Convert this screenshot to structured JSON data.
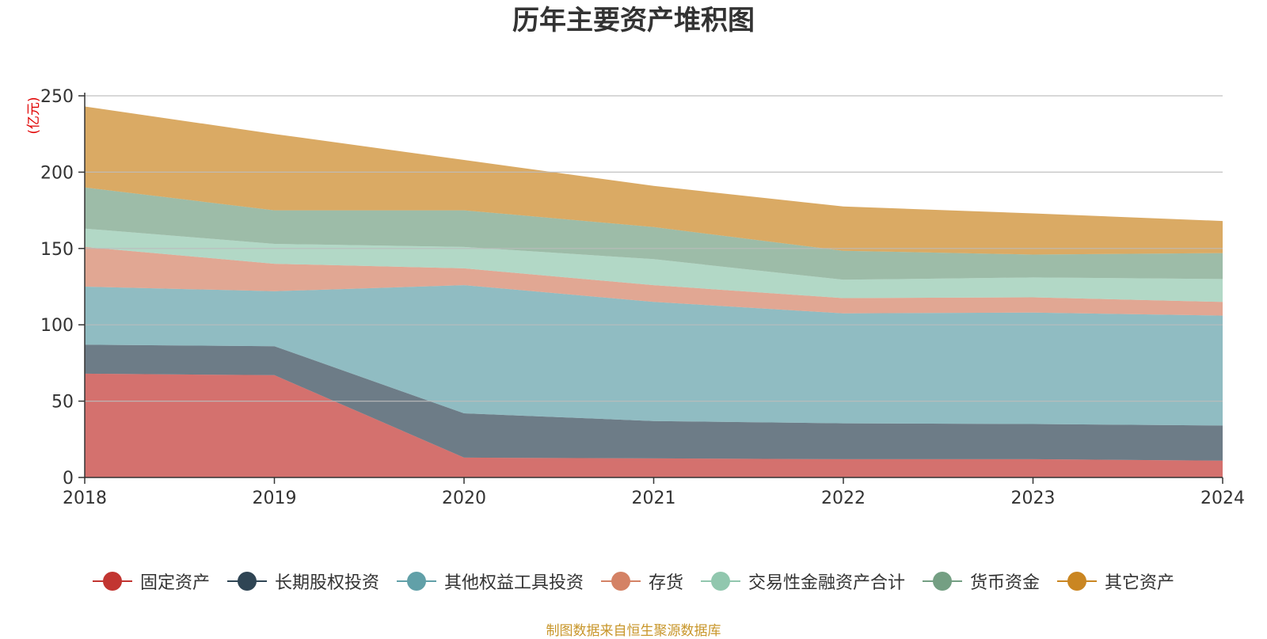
{
  "chart_data": {
    "type": "area",
    "stacked": true,
    "title": "历年主要资产堆积图",
    "unit_label": "(亿元)",
    "x": [
      "2018",
      "2019",
      "2020",
      "2021",
      "2022",
      "2023",
      "2024"
    ],
    "ylim": [
      0,
      250
    ],
    "yticks": [
      "0",
      "50",
      "100",
      "150",
      "200",
      "250"
    ],
    "grid": true,
    "legend_position": "bottom",
    "series": [
      {
        "name": "固定资产",
        "color": "#c23531",
        "values": [
          68,
          67,
          13,
          12.5,
          12,
          12,
          11
        ]
      },
      {
        "name": "长期股权投资",
        "color": "#2f4554",
        "values": [
          19,
          19,
          29,
          24.5,
          23.5,
          23,
          23
        ]
      },
      {
        "name": "其他权益工具投资",
        "color": "#61a0a8",
        "values": [
          38,
          36,
          84,
          78,
          72,
          73,
          72
        ]
      },
      {
        "name": "存货",
        "color": "#d48265",
        "values": [
          26,
          18,
          11,
          11,
          10,
          10,
          9
        ]
      },
      {
        "name": "交易性金融资产合计",
        "color": "#91c7ae",
        "values": [
          12,
          13,
          14,
          17,
          12,
          13,
          15
        ]
      },
      {
        "name": "货币资金",
        "color": "#749f83",
        "values": [
          27,
          22,
          24,
          21,
          19,
          15,
          17
        ]
      },
      {
        "name": "其它资产",
        "color": "#ca8622",
        "values": [
          53,
          50,
          33,
          27,
          29,
          27,
          21
        ]
      }
    ],
    "source_note": "制图数据来自恒生聚源数据库"
  }
}
